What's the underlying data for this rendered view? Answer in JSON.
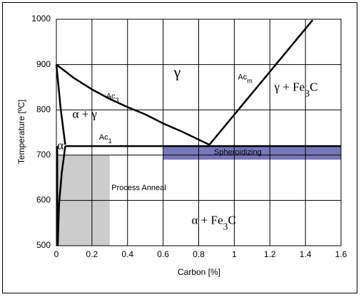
{
  "chart_data": {
    "type": "line",
    "title": "",
    "xlabel": "Carbon [%]",
    "ylabel": "Temperature [ºC]",
    "xlim": [
      0,
      1.6
    ],
    "ylim": [
      500,
      1000
    ],
    "x_ticks": [
      "0",
      "0.2",
      "0.4",
      "0.6",
      "0.8",
      "1",
      "1.2",
      "1.4",
      "1.6"
    ],
    "y_ticks": [
      "500",
      "600",
      "700",
      "800",
      "900",
      "1000"
    ],
    "grid": true,
    "legend": "none",
    "series": [
      {
        "name": "Ac3",
        "points": [
          [
            0,
            900
          ],
          [
            0.1,
            870
          ],
          [
            0.2,
            845
          ],
          [
            0.3,
            824
          ],
          [
            0.4,
            806
          ],
          [
            0.5,
            790
          ],
          [
            0.6,
            770
          ],
          [
            0.7,
            753
          ],
          [
            0.86,
            723
          ]
        ]
      },
      {
        "name": "Acm",
        "points": [
          [
            0.86,
            723
          ],
          [
            1.44,
            998
          ]
        ]
      },
      {
        "name": "Ac1",
        "points": [
          [
            0.05,
            720
          ],
          [
            1.6,
            720
          ]
        ]
      },
      {
        "name": "",
        "points": [
          [
            0,
            900
          ],
          [
            0.01,
            860
          ],
          [
            0.025,
            800
          ],
          [
            0.05,
            723
          ]
        ]
      },
      {
        "name": "",
        "points": [
          [
            0.05,
            720
          ],
          [
            0.03,
            660
          ],
          [
            0.015,
            590
          ],
          [
            0.008,
            500
          ]
        ]
      },
      {
        "name": "",
        "points": [
          [
            0.005,
            720
          ],
          [
            0.005,
            500
          ]
        ]
      }
    ],
    "bands": [
      {
        "label": "Process Anneal",
        "x": [
          0,
          0.3
        ],
        "y": [
          500,
          700
        ],
        "color": "#cccccc"
      },
      {
        "label": "Spheroidizing",
        "x": [
          0.6,
          1.6
        ],
        "y": [
          690,
          720
        ],
        "color": "#7777bb"
      }
    ],
    "region_labels": [
      {
        "text": "γ",
        "sub": "",
        "after": "",
        "x": 0.66,
        "y": 872,
        "serif": true,
        "size": 22
      },
      {
        "text": "α + γ",
        "sub": "",
        "after": "",
        "x": 0.09,
        "y": 782,
        "serif": true,
        "size": 17
      },
      {
        "text": "γ + Fe",
        "sub": "3",
        "after": "C",
        "x": 1.225,
        "y": 842,
        "serif": true,
        "size": 17
      },
      {
        "text": "α + Fe",
        "sub": "3",
        "after": "C",
        "x": 0.76,
        "y": 548,
        "serif": true,
        "size": 17
      },
      {
        "text": "α",
        "sub": "",
        "after": "",
        "x": 0.005,
        "y": 713,
        "serif": true,
        "size": 17
      },
      {
        "text": "Ac",
        "sub": "3",
        "after": "",
        "x": 0.28,
        "y": 825,
        "serif": false,
        "size": 11
      },
      {
        "text": "Ac",
        "sub": "1",
        "after": "",
        "x": 0.24,
        "y": 734,
        "serif": false,
        "size": 11
      },
      {
        "text": "Ac",
        "sub": "m",
        "after": "",
        "x": 1.02,
        "y": 867,
        "serif": false,
        "size": 11
      }
    ]
  }
}
